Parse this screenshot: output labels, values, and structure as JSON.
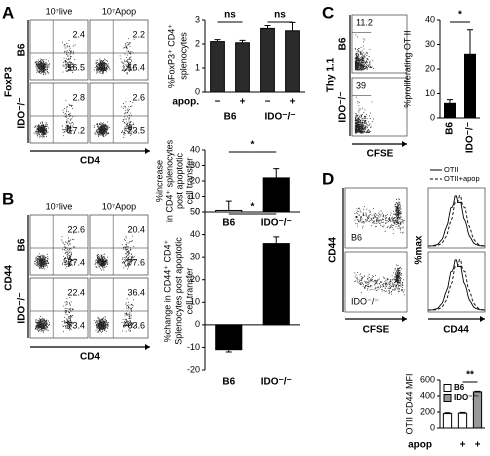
{
  "panels": [
    {
      "letter": "A",
      "columns": [
        "10⁷live",
        "10⁷Apop"
      ],
      "rows": [
        "B6",
        "IDO⁻/⁻"
      ],
      "y_axis": "FoxP3",
      "x_axis": "CD4",
      "gates": [
        [
          [
            "2.4",
            "16.5"
          ],
          [
            "2.2",
            "16.4"
          ]
        ],
        [
          [
            "2.8",
            "17.2"
          ],
          [
            "2.6",
            "23.5"
          ]
        ]
      ]
    },
    {
      "letter": "B",
      "columns": [
        "10⁷live",
        "10⁷Apop"
      ],
      "rows": [
        "B6",
        "IDO⁻/⁻"
      ],
      "y_axis": "CD44",
      "x_axis": "CD4",
      "gates": [
        [
          [
            "22.6",
            "77.4"
          ],
          [
            "20.4",
            "77.6"
          ]
        ],
        [
          [
            "22.4",
            "73.4"
          ],
          [
            "36.4",
            "63.6"
          ]
        ]
      ]
    },
    {
      "letter": "C",
      "rows": [
        "B6",
        "IDO⁻/⁻"
      ],
      "y_axis": "Thy 1.1",
      "x_axis": "CFSE",
      "gates": [
        [
          [
            "11.2"
          ]
        ],
        [
          [
            "39"
          ]
        ]
      ]
    },
    {
      "letter": "D",
      "rows": [
        "B6",
        "IDO⁻/⁻"
      ],
      "y_axis": "CD44",
      "x_axis": "CFSE",
      "hist_y_axis": "%max",
      "hist_x_axis": "CD44",
      "hist_legend": [
        "OTII",
        "OTII+apop"
      ]
    }
  ],
  "chart_data": [
    {
      "type": "bar",
      "y_label": [
        "%FoxP3⁺ CD4⁺",
        "splenocytes"
      ],
      "categories": [
        "−",
        "+",
        "−",
        "+"
      ],
      "groups": [
        "B6",
        "IDO⁻/⁻"
      ],
      "row_label": "apop.",
      "values": [
        2.1,
        2.05,
        2.65,
        2.55
      ],
      "errors": [
        0.08,
        0.1,
        0.12,
        0.35
      ],
      "colors": [
        "#2b2b2b",
        "#2b2b2b",
        "#2b2b2b",
        "#2b2b2b"
      ],
      "ylim": [
        0,
        3
      ],
      "yticks": [
        0,
        1,
        2,
        3
      ],
      "annotations": [
        "ns",
        "ns"
      ]
    },
    {
      "type": "bar",
      "y_label": [
        "%increase",
        "in CD4⁺ splenocytes",
        "post apoptotic",
        "cell transfer"
      ],
      "categories": [
        "B6",
        "IDO⁻/⁻"
      ],
      "values": [
        1,
        22
      ],
      "errors": [
        6,
        6
      ],
      "colors": [
        "#ffffff",
        "#000000"
      ],
      "ylim": [
        0,
        40
      ],
      "yticks": [
        0,
        10,
        20,
        30,
        40
      ],
      "annotations": [
        "*"
      ]
    },
    {
      "type": "bar",
      "y_label": [
        "%change in CD44⁺ CD4⁺",
        "Splenocytes post apoptotic",
        "cell transfer"
      ],
      "categories": [
        "B6",
        "IDO⁻/⁻"
      ],
      "values": [
        -11,
        36
      ],
      "errors": [
        1,
        3
      ],
      "colors": [
        "#000000",
        "#000000"
      ],
      "ylim": [
        -20,
        50
      ],
      "yticks": [
        -20,
        -10,
        0,
        10,
        20,
        30,
        40,
        50
      ],
      "annotations": [
        "*"
      ]
    },
    {
      "type": "bar",
      "y_label": [
        "%proliferating OT II"
      ],
      "categories": [
        "B6",
        "IDO⁻/⁻"
      ],
      "values": [
        6,
        26
      ],
      "errors": [
        1.5,
        10
      ],
      "colors": [
        "#000000",
        "#000000"
      ],
      "ylim": [
        0,
        40
      ],
      "yticks": [
        0,
        10,
        20,
        30,
        40
      ],
      "annotations": [
        "*"
      ]
    },
    {
      "type": "bar",
      "y_label": [
        "OTII CD44 MFI"
      ],
      "categories": [
        null,
        "+",
        "+"
      ],
      "row_label": "apop",
      "series": [
        {
          "name": "B6",
          "color": "#ffffff",
          "values": [
            180,
            185,
            null
          ],
          "errors": [
            10,
            10,
            null
          ]
        },
        {
          "name": "IDO⁻/⁻",
          "color": "#999999",
          "values": [
            null,
            null,
            450
          ],
          "errors": [
            null,
            null,
            8
          ]
        }
      ],
      "ylim": [
        0,
        600
      ],
      "yticks": [
        0,
        200,
        400,
        600
      ],
      "annotations": [
        "**"
      ]
    }
  ]
}
